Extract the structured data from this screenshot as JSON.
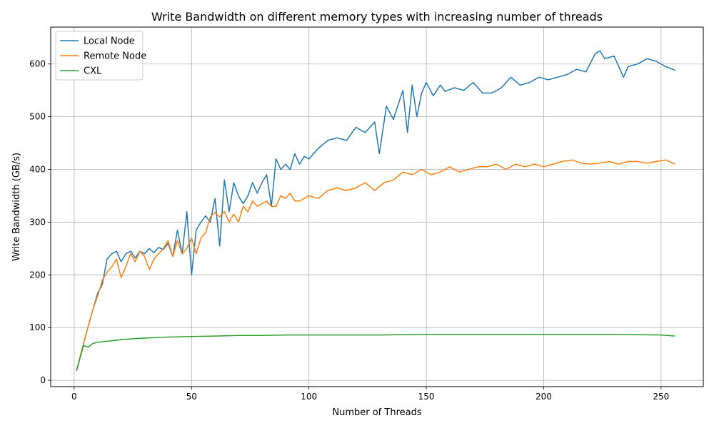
{
  "chart_data": {
    "type": "line",
    "title": "Write Bandwidth on different memory types with increasing number of threads",
    "xlabel": "Number of Threads",
    "ylabel": "Write Bandwidth (GB/s)",
    "xlim": [
      -10,
      268
    ],
    "ylim": [
      -12,
      670
    ],
    "xticks": [
      0,
      50,
      100,
      150,
      200,
      250
    ],
    "yticks": [
      0,
      100,
      200,
      300,
      400,
      500,
      600
    ],
    "grid": true,
    "legend_position": "top-left",
    "series": [
      {
        "name": "Local Node",
        "color": "#1f77b4",
        "x": [
          1,
          4,
          8,
          10,
          12,
          14,
          16,
          18,
          20,
          22,
          24,
          26,
          28,
          30,
          32,
          34,
          36,
          38,
          40,
          42,
          44,
          46,
          48,
          50,
          52,
          54,
          56,
          58,
          60,
          62,
          64,
          66,
          68,
          70,
          72,
          74,
          76,
          78,
          80,
          82,
          84,
          86,
          88,
          90,
          92,
          94,
          96,
          98,
          100,
          104,
          108,
          112,
          116,
          120,
          124,
          128,
          130,
          133,
          136,
          140,
          142,
          144,
          146,
          148,
          150,
          153,
          156,
          158,
          162,
          166,
          170,
          174,
          178,
          182,
          186,
          190,
          194,
          198,
          202,
          206,
          210,
          214,
          218,
          222,
          224,
          226,
          230,
          234,
          236,
          240,
          244,
          248,
          252,
          256
        ],
        "y": [
          18,
          70,
          135,
          165,
          182,
          230,
          240,
          245,
          225,
          240,
          245,
          232,
          245,
          240,
          250,
          242,
          252,
          248,
          260,
          235,
          285,
          240,
          320,
          200,
          285,
          300,
          312,
          300,
          345,
          255,
          380,
          320,
          375,
          350,
          335,
          350,
          375,
          355,
          375,
          390,
          330,
          420,
          400,
          410,
          400,
          430,
          410,
          425,
          420,
          440,
          455,
          460,
          455,
          480,
          470,
          490,
          430,
          520,
          495,
          550,
          470,
          560,
          500,
          545,
          565,
          540,
          560,
          548,
          555,
          550,
          565,
          545,
          545,
          555,
          575,
          560,
          565,
          575,
          570,
          575,
          580,
          590,
          585,
          620,
          625,
          610,
          615,
          575,
          595,
          600,
          610,
          605,
          595,
          588
        ]
      },
      {
        "name": "Remote Node",
        "color": "#ff7f0e",
        "x": [
          1,
          4,
          8,
          10,
          12,
          14,
          16,
          18,
          20,
          22,
          24,
          26,
          28,
          30,
          32,
          34,
          36,
          38,
          40,
          42,
          44,
          46,
          48,
          50,
          52,
          54,
          56,
          58,
          60,
          62,
          64,
          66,
          68,
          70,
          72,
          74,
          76,
          78,
          80,
          82,
          84,
          86,
          88,
          90,
          92,
          94,
          96,
          98,
          100,
          104,
          108,
          112,
          116,
          120,
          124,
          128,
          132,
          136,
          140,
          144,
          148,
          152,
          156,
          160,
          164,
          168,
          172,
          176,
          180,
          184,
          188,
          192,
          196,
          200,
          204,
          208,
          212,
          216,
          220,
          224,
          228,
          232,
          236,
          240,
          244,
          248,
          252,
          256
        ],
        "y": [
          18,
          70,
          135,
          160,
          190,
          205,
          215,
          230,
          195,
          215,
          240,
          225,
          245,
          235,
          210,
          230,
          240,
          250,
          265,
          235,
          265,
          240,
          250,
          270,
          240,
          270,
          280,
          310,
          318,
          310,
          320,
          300,
          315,
          300,
          330,
          320,
          340,
          330,
          335,
          340,
          330,
          330,
          350,
          345,
          355,
          340,
          340,
          345,
          350,
          345,
          360,
          365,
          360,
          365,
          375,
          360,
          375,
          380,
          395,
          390,
          400,
          390,
          395,
          405,
          395,
          400,
          405,
          405,
          410,
          400,
          410,
          405,
          410,
          405,
          410,
          415,
          418,
          412,
          410,
          412,
          415,
          410,
          415,
          415,
          412,
          415,
          418,
          410
        ]
      },
      {
        "name": "CXL",
        "color": "#2ca02c",
        "x": [
          1,
          4,
          6,
          8,
          10,
          14,
          18,
          22,
          26,
          30,
          35,
          40,
          50,
          60,
          70,
          80,
          90,
          100,
          110,
          120,
          130,
          150,
          170,
          190,
          210,
          230,
          250,
          256
        ],
        "y": [
          18,
          66,
          63,
          70,
          72,
          74,
          76,
          78,
          79,
          80,
          81,
          82,
          83,
          84,
          85,
          85,
          86,
          86,
          86,
          86,
          86,
          87,
          87,
          87,
          87,
          87,
          86,
          84
        ]
      }
    ]
  }
}
